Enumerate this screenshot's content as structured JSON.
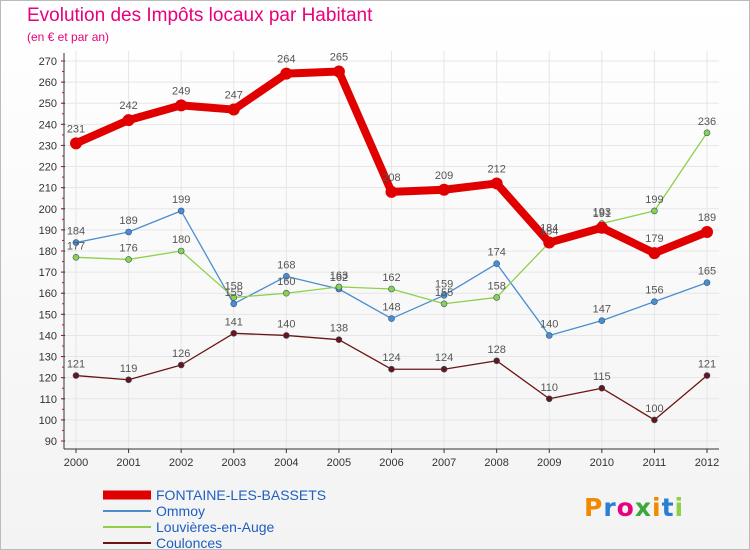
{
  "title": "Evolution des Impôts locaux par Habitant",
  "subtitle": "(en € et par an)",
  "logo": "Proxiti",
  "colors": {
    "title": "#e8007d",
    "legend_text": "#1f5fbf",
    "grid": "#e6e6e6"
  },
  "chart_data": {
    "type": "line",
    "x": [
      "2000",
      "2001",
      "2002",
      "2003",
      "2004",
      "2005",
      "2006",
      "2007",
      "2008",
      "2009",
      "2010",
      "2011",
      "2012"
    ],
    "ylim": [
      90,
      270
    ],
    "yticks": [
      90,
      100,
      110,
      120,
      130,
      140,
      150,
      160,
      170,
      180,
      190,
      200,
      210,
      220,
      230,
      240,
      250,
      260,
      270
    ],
    "grid": true,
    "legend_position": "bottom-left",
    "series": [
      {
        "name": "FONTAINE-LES-BASSETS",
        "color": "#e00000",
        "width": 8,
        "marker": 6,
        "values": [
          231,
          242,
          249,
          247,
          264,
          265,
          208,
          209,
          212,
          184,
          191,
          179,
          189
        ]
      },
      {
        "name": "Ommoy",
        "color": "#4a8ed0",
        "width": 1.3,
        "marker": 3,
        "values": [
          184,
          189,
          199,
          155,
          168,
          162,
          148,
          159,
          174,
          140,
          147,
          156,
          165
        ]
      },
      {
        "name": "Louvières-en-Auge",
        "color": "#8ed04a",
        "width": 1.3,
        "marker": 3,
        "values": [
          177,
          176,
          180,
          158,
          160,
          163,
          162,
          155,
          158,
          184,
          193,
          199,
          236
        ]
      },
      {
        "name": "Coulonces",
        "color": "#6b1414",
        "width": 1.3,
        "marker": 3,
        "values": [
          121,
          119,
          126,
          141,
          140,
          138,
          124,
          124,
          128,
          110,
          115,
          100,
          121
        ]
      }
    ]
  }
}
